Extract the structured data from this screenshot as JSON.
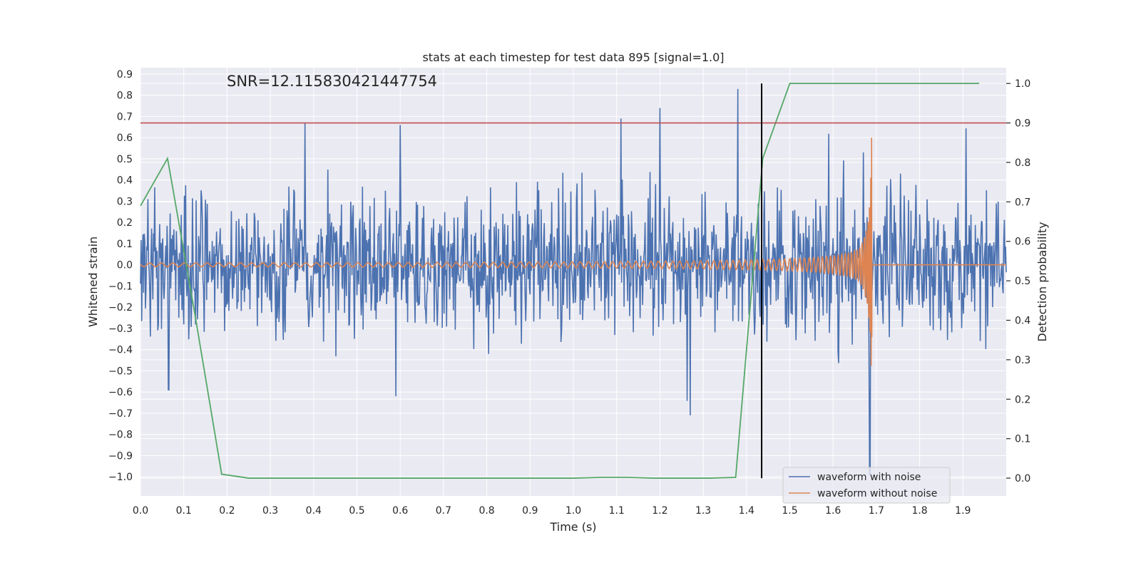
{
  "chart_data": {
    "type": "line",
    "title": "stats at each timestep for test data 895 [signal=1.0]",
    "annotation": "SNR=12.115830421447754",
    "xlabel": "Time (s)",
    "ylabel_left": "Whitened strain",
    "ylabel_right": "Detection probability",
    "xlim": [
      0.0,
      2.0
    ],
    "ylim_left": [
      -1.09,
      0.93
    ],
    "ylim_right": [
      -0.045,
      1.04
    ],
    "xticks": [
      0.0,
      0.1,
      0.2,
      0.3,
      0.4,
      0.5,
      0.6,
      0.7,
      0.8,
      0.9,
      1.0,
      1.1,
      1.2,
      1.3,
      1.4,
      1.5,
      1.6,
      1.7,
      1.8,
      1.9
    ],
    "xtick_labels": [
      "0.0",
      "0.1",
      "0.2",
      "0.3",
      "0.4",
      "0.5",
      "0.6",
      "0.7",
      "0.8",
      "0.9",
      "1.0",
      "1.1",
      "1.2",
      "1.3",
      "1.4",
      "1.5",
      "1.6",
      "1.7",
      "1.8",
      "1.9"
    ],
    "yticks_left": [
      0.9,
      0.8,
      0.7,
      0.6,
      0.5,
      0.4,
      0.3,
      0.2,
      0.1,
      0.0,
      -0.1,
      -0.2,
      -0.3,
      -0.4,
      -0.5,
      -0.6,
      -0.7,
      -0.8,
      -0.9,
      -1.0
    ],
    "ytick_labels_left": [
      "0.9",
      "0.8",
      "0.7",
      "0.6",
      "0.5",
      "0.4",
      "0.3",
      "0.2",
      "0.1",
      "0.0",
      "−0.1",
      "−0.2",
      "−0.3",
      "−0.4",
      "−0.5",
      "−0.6",
      "−0.7",
      "−0.8",
      "−0.9",
      "−1.0"
    ],
    "yticks_right": [
      1.0,
      0.9,
      0.8,
      0.7,
      0.6,
      0.5,
      0.4,
      0.3,
      0.2,
      0.1,
      0.0
    ],
    "ytick_labels_right": [
      "1.0",
      "0.9",
      "0.8",
      "0.7",
      "0.6",
      "0.5",
      "0.4",
      "0.3",
      "0.2",
      "0.1",
      "0.0"
    ],
    "grid": true,
    "legend_position": "bottom-right",
    "series": [
      {
        "name": "waveform with noise",
        "axis": "left",
        "color": "#4c72b0",
        "x_range": [
          0.0,
          2.0
        ],
        "amplitude_sigma": 0.2,
        "notable_peaks": [
          {
            "x": 0.38,
            "y": 0.67
          },
          {
            "x": 0.6,
            "y": 0.66
          },
          {
            "x": 1.11,
            "y": 0.69
          },
          {
            "x": 1.2,
            "y": 0.74
          },
          {
            "x": 1.38,
            "y": 0.83
          },
          {
            "x": 1.27,
            "y": -0.71
          },
          {
            "x": 1.685,
            "y": -0.99
          },
          {
            "x": 0.065,
            "y": -0.59
          },
          {
            "x": 0.59,
            "y": -0.62
          }
        ]
      },
      {
        "name": "waveform without noise",
        "axis": "left",
        "color": "#dd8452",
        "description_points": [
          {
            "x": 0.0,
            "amplitude": 0.01
          },
          {
            "x": 1.0,
            "amplitude": 0.025
          },
          {
            "x": 1.4,
            "amplitude": 0.07
          },
          {
            "x": 1.6,
            "amplitude": 0.13
          },
          {
            "x": 1.68,
            "amplitude": 0.6
          },
          {
            "x": 1.69,
            "amplitude": 0.0
          }
        ]
      },
      {
        "axis": "right",
        "color": "#55a868",
        "x": [
          0.0,
          0.0625,
          0.125,
          0.1875,
          0.25,
          0.3125,
          0.375,
          0.4375,
          0.5,
          0.5625,
          0.625,
          0.6875,
          0.75,
          0.8125,
          0.875,
          0.9375,
          1.0,
          1.0625,
          1.125,
          1.1875,
          1.25,
          1.3125,
          1.375,
          1.4375,
          1.5,
          1.5625,
          1.625,
          1.6875,
          1.75,
          1.8125,
          1.875,
          1.9375
        ],
        "y": [
          0.69,
          0.81,
          0.42,
          0.01,
          0.0,
          0.0,
          0.0,
          0.0,
          0.0,
          0.0,
          0.0,
          0.0,
          0.0,
          0.0,
          0.0,
          0.0,
          0.0,
          0.002,
          0.002,
          0.0,
          0.0,
          0.0,
          0.002,
          0.81,
          1.0,
          1.0,
          1.0,
          1.0,
          1.0,
          1.0,
          1.0,
          1.0
        ]
      }
    ],
    "hlines": [
      {
        "axis": "right",
        "y": 0.9,
        "color": "#c44e52"
      }
    ],
    "vlines": [
      {
        "x": 1.435,
        "ymin_right": 0.0,
        "ymax_right": 1.0,
        "color": "#000000"
      }
    ]
  }
}
